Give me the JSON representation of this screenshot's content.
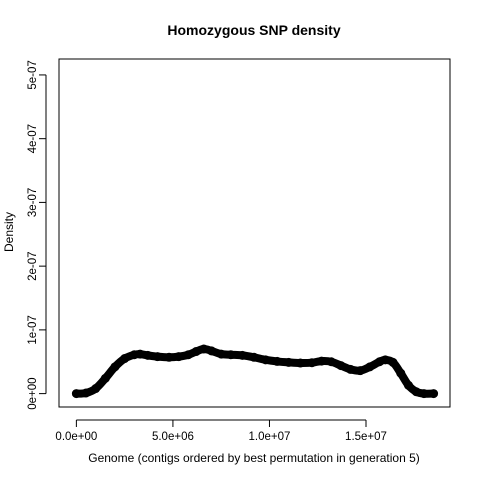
{
  "chart_data": {
    "type": "line",
    "title": "Homozygous SNP density",
    "xlabel": "Genome (contigs ordered by best permutation in generation 5)",
    "ylabel": "Density",
    "xlim": [
      -900000,
      19350000
    ],
    "ylim": [
      -2.1e-08,
      5.25e-07
    ],
    "x_ticks": [
      {
        "value": 0,
        "label": "0.0e+00"
      },
      {
        "value": 5000000,
        "label": "5.0e+06"
      },
      {
        "value": 10000000,
        "label": "1.0e+07"
      },
      {
        "value": 15000000,
        "label": "1.5e+07"
      }
    ],
    "y_ticks": [
      {
        "value": 0,
        "label": "0e+00"
      },
      {
        "value": 1e-07,
        "label": "1e-07"
      },
      {
        "value": 2e-07,
        "label": "2e-07"
      },
      {
        "value": 3e-07,
        "label": "3e-07"
      },
      {
        "value": 4e-07,
        "label": "4e-07"
      },
      {
        "value": 5e-07,
        "label": "5e-07"
      }
    ],
    "grid": false,
    "series": [
      {
        "color": "#000000",
        "x": [
          0,
          500000,
          1000000,
          1500000,
          2000000,
          2500000,
          3000000,
          3300000,
          3700000,
          4200000,
          4800000,
          5300000,
          5800000,
          6200000,
          6600000,
          7000000,
          7500000,
          8000000,
          8600000,
          9200000,
          9800000,
          10400000,
          11000000,
          11600000,
          12200000,
          12700000,
          13200000,
          13700000,
          14200000,
          14700000,
          15200000,
          15700000,
          16000000,
          16400000,
          16800000,
          17200000,
          17600000,
          18000000,
          18500000
        ],
        "y": [
          0,
          1e-09,
          8e-09,
          2.4e-08,
          4.2e-08,
          5.5e-08,
          6.1e-08,
          6.2e-08,
          6e-08,
          5.8e-08,
          5.7e-08,
          5.8e-08,
          6.1e-08,
          6.6e-08,
          7e-08,
          6.7e-08,
          6.2e-08,
          6.1e-08,
          6e-08,
          5.7e-08,
          5.3e-08,
          5.05e-08,
          4.9e-08,
          4.8e-08,
          4.85e-08,
          5.1e-08,
          5e-08,
          4.4e-08,
          3.8e-08,
          3.6e-08,
          4.2e-08,
          5e-08,
          5.3e-08,
          4.9e-08,
          3.2e-08,
          1.3e-08,
          3e-09,
          0,
          0
        ]
      }
    ]
  }
}
